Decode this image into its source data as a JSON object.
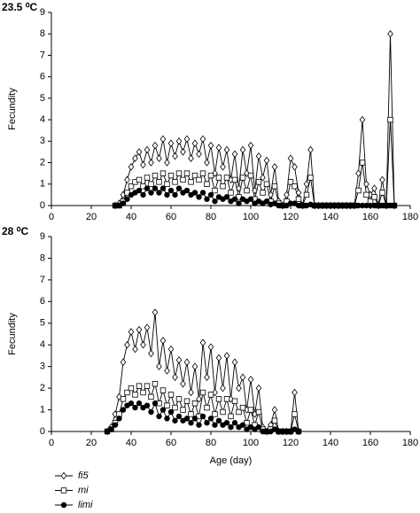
{
  "chart_data": [
    {
      "type": "line",
      "title": "23.5 ⁰C",
      "ylabel": "Fecundity",
      "xlim": [
        0,
        180
      ],
      "xticks": [
        0,
        20,
        40,
        60,
        80,
        100,
        120,
        140,
        160,
        180
      ],
      "ylim": [
        0,
        9
      ],
      "yticks": [
        0,
        1,
        2,
        3,
        4,
        5,
        6,
        7,
        8,
        9
      ],
      "x": [
        32,
        34,
        36,
        38,
        40,
        42,
        44,
        46,
        48,
        50,
        52,
        54,
        56,
        58,
        60,
        62,
        64,
        66,
        68,
        70,
        72,
        74,
        76,
        78,
        80,
        82,
        84,
        86,
        88,
        90,
        92,
        94,
        96,
        98,
        100,
        102,
        104,
        106,
        108,
        110,
        112,
        114,
        116,
        118,
        120,
        122,
        124,
        126,
        128,
        130,
        132,
        134,
        136,
        138,
        140,
        142,
        144,
        146,
        148,
        150,
        152,
        154,
        156,
        158,
        160,
        162,
        164,
        166,
        168,
        170,
        172
      ],
      "series": [
        {
          "color": "#000000",
          "marker": "diamond",
          "fill": "#ffffff",
          "values": [
            0,
            0.1,
            0.5,
            1.2,
            1.8,
            2.2,
            2.5,
            1.9,
            2.6,
            2.0,
            2.8,
            2.2,
            3.1,
            2.0,
            2.9,
            2.3,
            3.0,
            2.5,
            3.1,
            2.2,
            2.9,
            2.4,
            3.1,
            2.0,
            2.8,
            1.5,
            2.7,
            1.8,
            2.6,
            1.2,
            2.4,
            0.8,
            2.6,
            1.5,
            2.8,
            0.7,
            2.3,
            1.3,
            2.1,
            0.5,
            1.8,
            0.2,
            0,
            0.5,
            2.2,
            1.8,
            0.6,
            0,
            1.0,
            2.6,
            0,
            0,
            0,
            0,
            0,
            0,
            0,
            0,
            0,
            0,
            0,
            1.5,
            4.0,
            1.0,
            0.5,
            0.8,
            0,
            1.2,
            0,
            8.0,
            0
          ]
        },
        {
          "color": "#000000",
          "marker": "square",
          "fill": "#ffffff",
          "values": [
            0,
            0,
            0.2,
            0.6,
            0.9,
            1.1,
            1.2,
            0.9,
            1.3,
            1.0,
            1.4,
            1.1,
            1.5,
            1.0,
            1.4,
            1.1,
            1.5,
            1.2,
            1.5,
            1.1,
            1.4,
            1.2,
            1.5,
            1.0,
            1.4,
            0.7,
            1.3,
            0.9,
            1.3,
            0.6,
            1.2,
            0.4,
            1.3,
            0.7,
            1.4,
            0.3,
            1.1,
            0.6,
            1.0,
            0.2,
            0.9,
            0.1,
            0,
            0.2,
            1.1,
            0.9,
            0.3,
            0,
            0.5,
            1.3,
            0,
            0,
            0,
            0,
            0,
            0,
            0,
            0,
            0,
            0,
            0,
            0.7,
            2.0,
            0.5,
            0.2,
            0.4,
            0,
            0.6,
            0,
            4.0,
            0
          ]
        },
        {
          "color": "#000000",
          "marker": "circle",
          "fill": "#000000",
          "values": [
            0,
            0,
            0.1,
            0.3,
            0.5,
            0.6,
            0.7,
            0.5,
            0.8,
            0.6,
            0.8,
            0.6,
            0.8,
            0.5,
            0.7,
            0.5,
            0.8,
            0.6,
            0.7,
            0.5,
            0.6,
            0.4,
            0.6,
            0.3,
            0.5,
            0.2,
            0.4,
            0.3,
            0.4,
            0.2,
            0.3,
            0.1,
            0.3,
            0.2,
            0.3,
            0.1,
            0.2,
            0.1,
            0.2,
            0.05,
            0.1,
            0,
            0,
            0,
            0.1,
            0.1,
            0,
            0,
            0,
            0.05,
            0,
            0,
            0,
            0,
            0,
            0,
            0,
            0,
            0,
            0,
            0,
            0,
            0,
            0,
            0,
            0,
            0,
            0,
            0,
            0,
            0
          ]
        }
      ]
    },
    {
      "type": "line",
      "title": "28 ⁰C",
      "ylabel": "Fecundity",
      "xlabel": "Age (day)",
      "xlim": [
        0,
        180
      ],
      "xticks": [
        0,
        20,
        40,
        60,
        80,
        100,
        120,
        140,
        160,
        180
      ],
      "ylim": [
        0,
        9
      ],
      "yticks": [
        0,
        1,
        2,
        3,
        4,
        5,
        6,
        7,
        8,
        9
      ],
      "x": [
        28,
        30,
        32,
        34,
        36,
        38,
        40,
        42,
        44,
        46,
        48,
        50,
        52,
        54,
        56,
        58,
        60,
        62,
        64,
        66,
        68,
        70,
        72,
        74,
        76,
        78,
        80,
        82,
        84,
        86,
        88,
        90,
        92,
        94,
        96,
        98,
        100,
        102,
        104,
        106,
        108,
        110,
        112,
        114,
        116,
        118,
        120,
        122,
        124
      ],
      "series": [
        {
          "name": "fi5",
          "color": "#000000",
          "marker": "diamond",
          "fill": "#ffffff",
          "values": [
            0,
            0.2,
            0.8,
            1.6,
            3.2,
            4.0,
            4.6,
            3.8,
            4.7,
            4.0,
            4.8,
            3.6,
            5.5,
            3.0,
            4.2,
            2.8,
            3.8,
            2.5,
            3.3,
            2.2,
            3.2,
            1.8,
            3.0,
            1.5,
            4.1,
            2.5,
            3.9,
            1.8,
            3.4,
            2.0,
            3.5,
            1.5,
            3.2,
            2.0,
            2.5,
            1.0,
            2.4,
            0.8,
            2.0,
            0.2,
            0,
            0.3,
            1.0,
            0,
            0,
            0,
            0,
            1.8,
            0
          ]
        },
        {
          "name": "mi",
          "color": "#000000",
          "marker": "square",
          "fill": "#ffffff",
          "values": [
            0,
            0.1,
            0.4,
            0.8,
            1.5,
            1.8,
            2.0,
            1.7,
            2.1,
            1.8,
            2.1,
            1.6,
            2.2,
            1.3,
            1.9,
            1.2,
            1.7,
            1.1,
            1.5,
            1.0,
            1.4,
            0.8,
            1.3,
            0.7,
            1.8,
            1.1,
            1.7,
            0.8,
            1.5,
            0.9,
            1.5,
            0.7,
            1.4,
            0.9,
            1.1,
            0.4,
            1.0,
            0.3,
            0.9,
            0.1,
            0,
            0.1,
            0.5,
            0,
            0,
            0,
            0,
            0.8,
            0
          ]
        },
        {
          "name": "limi",
          "color": "#000000",
          "marker": "circle",
          "fill": "#000000",
          "values": [
            0,
            0.1,
            0.3,
            0.6,
            1.0,
            1.2,
            1.3,
            1.1,
            1.3,
            1.1,
            1.2,
            0.9,
            1.3,
            0.7,
            1.0,
            0.6,
            0.9,
            0.5,
            0.7,
            0.5,
            0.6,
            0.4,
            0.6,
            0.3,
            0.7,
            0.4,
            0.6,
            0.3,
            0.5,
            0.3,
            0.4,
            0.2,
            0.4,
            0.2,
            0.3,
            0.1,
            0.2,
            0.1,
            0.2,
            0,
            0,
            0,
            0.1,
            0,
            0,
            0,
            0,
            0.1,
            0
          ]
        }
      ]
    }
  ]
}
